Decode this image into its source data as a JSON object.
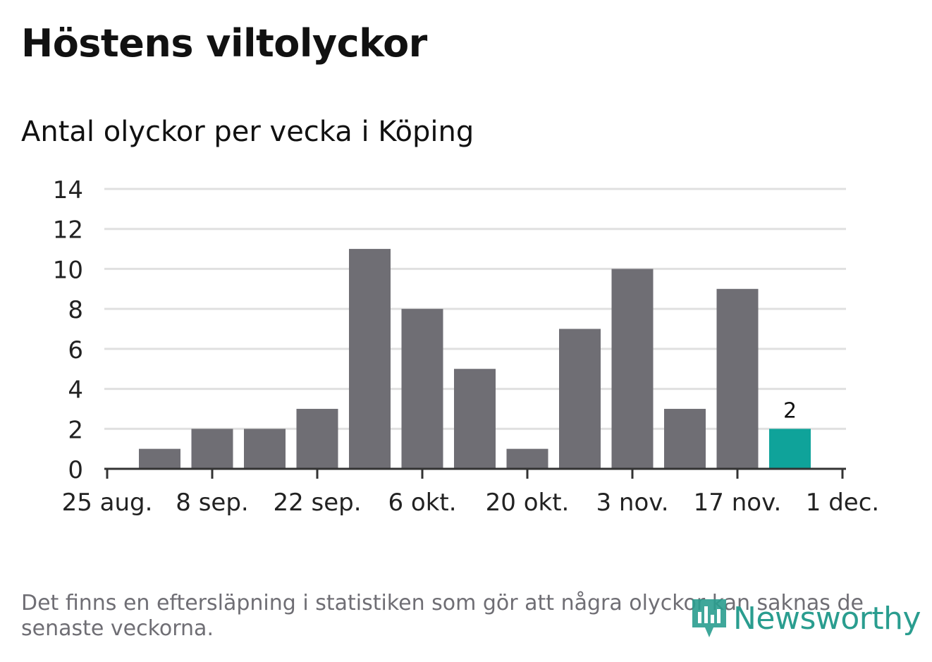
{
  "title": "Höstens viltolyckor",
  "subtitle": "Antal olyckor per vecka i Köping",
  "footnote": "Det finns en eftersläpning i statistiken som gör att några olyckor kan saknas de senaste veckorna.",
  "logo": {
    "text": "Newsworthy",
    "icon": "newsworthy-bars-icon"
  },
  "colors": {
    "bar": "#6f6e74",
    "highlight": "#0fa39a",
    "grid": "#e0e0e0",
    "axis": "#333333",
    "logo": "#2a9d8f"
  },
  "chart_data": {
    "type": "bar",
    "categories": [
      "2019-09-01",
      "2019-09-08",
      "2019-09-15",
      "2019-09-22",
      "2019-09-29",
      "2019-10-06",
      "2019-10-13",
      "2019-10-20",
      "2019-10-27",
      "2019-11-03",
      "2019-11-10",
      "2019-11-17",
      "2019-11-24"
    ],
    "values": [
      1,
      2,
      2,
      3,
      11,
      8,
      5,
      1,
      7,
      10,
      3,
      9,
      2
    ],
    "highlight_index": 12,
    "data_labels": [
      {
        "index": 12,
        "text": "2"
      }
    ],
    "ylim": [
      0,
      14
    ],
    "yticks": [
      0,
      2,
      4,
      6,
      8,
      10,
      12,
      14
    ],
    "xticks": [
      "25 aug.",
      "8 sep.",
      "22 sep.",
      "6 okt.",
      "20 okt.",
      "3 nov.",
      "17 nov.",
      "1 dec."
    ],
    "xlabel": "",
    "ylabel": "",
    "grid": true
  }
}
